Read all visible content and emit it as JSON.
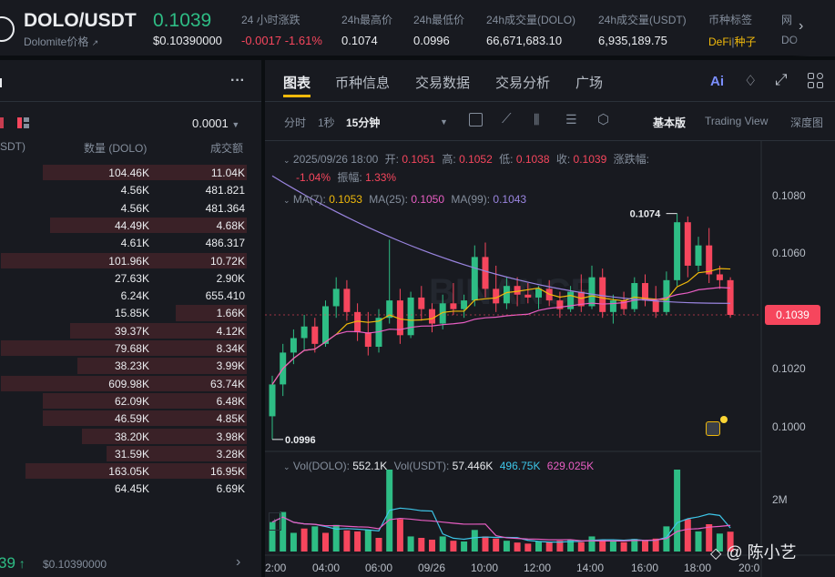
{
  "header": {
    "pair": "DOLO/USDT",
    "subtitle": "Dolomite价格",
    "price": "0.1039",
    "price_usd": "$0.10390000",
    "change_label": "24 小时涨跌",
    "change_value": "-0.0017 -1.61%",
    "high_label": "24h最高价",
    "high_value": "0.1074",
    "low_label": "24h最低价",
    "low_value": "0.0996",
    "vol_dolo_label": "24h成交量(DOLO)",
    "vol_dolo_value": "66,671,683.10",
    "vol_usdt_label": "24h成交量(USDT)",
    "vol_usdt_value": "6,935,189.75",
    "tag_label": "币种标签",
    "tag_defi": "DeFi",
    "tag_sep": "|",
    "tag_seed": "种子",
    "net_label": "网",
    "net_value": "DO"
  },
  "orderbook": {
    "menu": "···",
    "precision": "0.0001",
    "col_price": "SDT)",
    "col_qty": "数量 (DOLO)",
    "col_total": "成交额",
    "rows": [
      {
        "qty": "104.46K",
        "total": "11.04K",
        "depth": 0.83
      },
      {
        "qty": "4.56K",
        "total": "481.821",
        "depth": 0.0
      },
      {
        "qty": "4.56K",
        "total": "481.364",
        "depth": 0.0
      },
      {
        "qty": "44.49K",
        "total": "4.68K",
        "depth": 0.8
      },
      {
        "qty": "4.61K",
        "total": "486.317",
        "depth": 0.0
      },
      {
        "qty": "101.96K",
        "total": "10.72K",
        "depth": 1.0
      },
      {
        "qty": "27.63K",
        "total": "2.90K",
        "depth": 0.0
      },
      {
        "qty": "6.24K",
        "total": "655.410",
        "depth": 0.0
      },
      {
        "qty": "15.85K",
        "total": "1.66K",
        "depth": 0.29
      },
      {
        "qty": "39.37K",
        "total": "4.12K",
        "depth": 0.72
      },
      {
        "qty": "79.68K",
        "total": "8.34K",
        "depth": 1.0
      },
      {
        "qty": "38.23K",
        "total": "3.99K",
        "depth": 0.69
      },
      {
        "qty": "609.98K",
        "total": "63.74K",
        "depth": 1.0
      },
      {
        "qty": "62.09K",
        "total": "6.48K",
        "depth": 0.83
      },
      {
        "qty": "46.59K",
        "total": "4.85K",
        "depth": 0.83
      },
      {
        "qty": "38.20K",
        "total": "3.98K",
        "depth": 0.67
      },
      {
        "qty": "31.59K",
        "total": "3.28K",
        "depth": 0.57
      },
      {
        "qty": "163.05K",
        "total": "16.95K",
        "depth": 0.9
      },
      {
        "qty": "64.45K",
        "total": "6.69K",
        "depth": 0.0
      }
    ],
    "footer_price": "39",
    "footer_usd": "$0.10390000",
    "footer_arrow": "›"
  },
  "tabs": [
    "图表",
    "币种信息",
    "交易数据",
    "交易分析",
    "广场"
  ],
  "toolbar": {
    "time_label": "分时",
    "one_sec": "1秒",
    "interval": "15分钟",
    "view_basic": "基本版",
    "view_tv": "Trading View",
    "view_depth": "深度图"
  },
  "ohlc": {
    "date": "2025/09/26 18:00",
    "open_label": "开:",
    "open": "0.1051",
    "high_label": "高:",
    "high": "0.1052",
    "low_label": "低:",
    "low": "0.1038",
    "close_label": "收:",
    "close": "0.1039",
    "chg_label": "涨跌幅:",
    "chg": "-1.04%",
    "amp_label": "振幅:",
    "amp": "1.33%"
  },
  "ma": {
    "ma7_label": "MA(7):",
    "ma7": "0.1053",
    "ma25_label": "MA(25):",
    "ma25": "0.1050",
    "ma99_label": "MA(99):",
    "ma99": "0.1043",
    "color_ma7": "#f0b90b",
    "color_ma25": "#e85ec3",
    "color_ma99": "#9a85e0"
  },
  "vol": {
    "dolo_label": "Vol(DOLO):",
    "dolo": "552.1K",
    "usdt_label": "Vol(USDT):",
    "usdt": "57.446K",
    "ma5": "496.75K",
    "ma10": "629.025K"
  },
  "chart_data": {
    "type": "candlestick",
    "y_ticks": [
      "0.1080",
      "0.1060",
      "0.1040",
      "0.1020",
      "0.1000"
    ],
    "y_tick_values": [
      0.108,
      0.106,
      0.104,
      0.102,
      0.1
    ],
    "ylim": [
      0.09925,
      0.1094
    ],
    "x_ticks": [
      "2:00",
      "04:00",
      "06:00",
      "09/26",
      "10:00",
      "12:00",
      "14:00",
      "16:00",
      "18:00",
      "20:0"
    ],
    "last_price": "0.1039",
    "last_price_value": 0.1039,
    "high_marker": "0.1074",
    "high_marker_value": 0.1074,
    "low_marker": "0.0996",
    "low_marker_value": 0.0996,
    "vol_tick": "2M",
    "vol_tick_value": 2000000,
    "candles": [
      [
        0.1004,
        0.1018,
        0.0996,
        0.1015
      ],
      [
        0.1015,
        0.1029,
        0.1011,
        0.1026
      ],
      [
        0.1026,
        0.1034,
        0.1022,
        0.1031
      ],
      [
        0.1031,
        0.1039,
        0.1027,
        0.1035
      ],
      [
        0.1035,
        0.1038,
        0.1026,
        0.1029
      ],
      [
        0.1029,
        0.1044,
        0.1028,
        0.1042
      ],
      [
        0.1042,
        0.1052,
        0.1038,
        0.1048
      ],
      [
        0.1048,
        0.1051,
        0.1037,
        0.104
      ],
      [
        0.104,
        0.1043,
        0.103,
        0.1033
      ],
      [
        0.1033,
        0.104,
        0.1025,
        0.1028
      ],
      [
        0.1028,
        0.1041,
        0.1026,
        0.1038
      ],
      [
        0.1038,
        0.1065,
        0.1036,
        0.1044
      ],
      [
        0.1044,
        0.1048,
        0.1029,
        0.1032
      ],
      [
        0.1032,
        0.1047,
        0.1031,
        0.1045
      ],
      [
        0.1045,
        0.1049,
        0.1037,
        0.1041
      ],
      [
        0.1041,
        0.1043,
        0.1033,
        0.1036
      ],
      [
        0.1036,
        0.1046,
        0.1034,
        0.1043
      ],
      [
        0.1043,
        0.105,
        0.1039,
        0.1041
      ],
      [
        0.1041,
        0.1046,
        0.1038,
        0.1044
      ],
      [
        0.1044,
        0.1063,
        0.1042,
        0.1059
      ],
      [
        0.1059,
        0.1064,
        0.1045,
        0.1048
      ],
      [
        0.1048,
        0.1056,
        0.104,
        0.1043
      ],
      [
        0.1043,
        0.1052,
        0.1041,
        0.1049
      ],
      [
        0.1049,
        0.1052,
        0.1042,
        0.1046
      ],
      [
        0.1046,
        0.105,
        0.1043,
        0.1045
      ],
      [
        0.1045,
        0.1049,
        0.1041,
        0.1048
      ],
      [
        0.1048,
        0.1051,
        0.1042,
        0.1044
      ],
      [
        0.1044,
        0.1047,
        0.1038,
        0.1041
      ],
      [
        0.1041,
        0.1049,
        0.104,
        0.1047
      ],
      [
        0.1047,
        0.1053,
        0.104,
        0.1042
      ],
      [
        0.1042,
        0.1056,
        0.1041,
        0.1052
      ],
      [
        0.1052,
        0.1055,
        0.1038,
        0.104
      ],
      [
        0.104,
        0.1046,
        0.1036,
        0.1044
      ],
      [
        0.1044,
        0.1047,
        0.1039,
        0.1041
      ],
      [
        0.1041,
        0.1052,
        0.104,
        0.105
      ],
      [
        0.105,
        0.1053,
        0.1042,
        0.1044
      ],
      [
        0.1044,
        0.1049,
        0.1038,
        0.104
      ],
      [
        0.104,
        0.1054,
        0.1039,
        0.1051
      ],
      [
        0.1051,
        0.1074,
        0.1049,
        0.1071
      ],
      [
        0.1071,
        0.1073,
        0.1052,
        0.1056
      ],
      [
        0.1056,
        0.1066,
        0.1054,
        0.1063
      ],
      [
        0.1063,
        0.1069,
        0.105,
        0.1053
      ],
      [
        0.1053,
        0.1056,
        0.1048,
        0.1051
      ],
      [
        0.1051,
        0.1052,
        0.1038,
        0.1039
      ]
    ],
    "volumes": [
      [
        820000,
        "up"
      ],
      [
        1100000,
        "up"
      ],
      [
        520000,
        "up"
      ],
      [
        640000,
        "down"
      ],
      [
        700000,
        "up"
      ],
      [
        520000,
        "down"
      ],
      [
        740000,
        "up"
      ],
      [
        590000,
        "down"
      ],
      [
        560000,
        "down"
      ],
      [
        600000,
        "up"
      ],
      [
        380000,
        "down"
      ],
      [
        3600000,
        "up"
      ],
      [
        900000,
        "down"
      ],
      [
        420000,
        "up"
      ],
      [
        380000,
        "down"
      ],
      [
        330000,
        "down"
      ],
      [
        420000,
        "up"
      ],
      [
        300000,
        "down"
      ],
      [
        280000,
        "up"
      ],
      [
        600000,
        "up"
      ],
      [
        420000,
        "down"
      ],
      [
        360000,
        "down"
      ],
      [
        300000,
        "up"
      ],
      [
        250000,
        "down"
      ],
      [
        220000,
        "down"
      ],
      [
        280000,
        "up"
      ],
      [
        260000,
        "down"
      ],
      [
        300000,
        "down"
      ],
      [
        320000,
        "up"
      ],
      [
        260000,
        "down"
      ],
      [
        420000,
        "up"
      ],
      [
        330000,
        "down"
      ],
      [
        300000,
        "up"
      ],
      [
        260000,
        "down"
      ],
      [
        350000,
        "up"
      ],
      [
        300000,
        "down"
      ],
      [
        360000,
        "down"
      ],
      [
        700000,
        "up"
      ],
      [
        2300000,
        "up"
      ],
      [
        900000,
        "down"
      ],
      [
        560000,
        "up"
      ],
      [
        760000,
        "down"
      ],
      [
        500000,
        "up"
      ],
      [
        552100,
        "down"
      ]
    ],
    "colors": {
      "up": "#2ebd85",
      "down": "#f6465d"
    }
  },
  "watermark": {
    "icon": "◇",
    "text": "@ 陈小艺"
  }
}
